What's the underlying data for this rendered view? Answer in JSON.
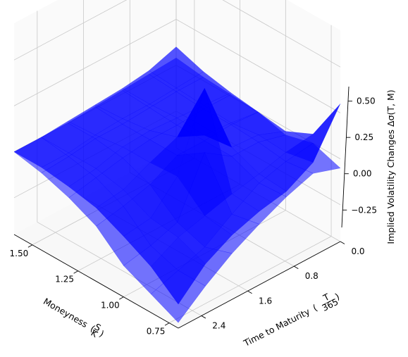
{
  "chart_data": {
    "type": "surface3d",
    "title": "",
    "xlabel": "Moneyness",
    "xlabel_frac_num": "S",
    "xlabel_frac_den": "K",
    "ylabel": "Time to Maturity",
    "ylabel_frac_num": "T",
    "ylabel_frac_den": "365",
    "zlabel": "Implied Volatility Changes Δσ(T, M)",
    "x_ticks": [
      "0.75",
      "1.00",
      "1.25",
      "1.50"
    ],
    "x_tick_values": [
      0.75,
      1.0,
      1.25,
      1.5
    ],
    "y_ticks": [
      "0.0",
      "0.8",
      "1.6",
      "2.4"
    ],
    "y_tick_values": [
      0.0,
      0.8,
      1.6,
      2.4
    ],
    "z_ticks": [
      "−0.25",
      "0.00",
      "0.25",
      "0.50"
    ],
    "z_tick_values": [
      -0.25,
      0.0,
      0.25,
      0.5
    ],
    "xlim": [
      0.7,
      1.6
    ],
    "ylim": [
      0.0,
      2.8
    ],
    "zlim": [
      -0.45,
      0.7
    ],
    "grid": true,
    "surface_color": "#0000ff",
    "moneyness_grid": [
      0.7,
      0.85,
      1.0,
      1.15,
      1.3,
      1.45,
      1.6
    ],
    "maturity_grid": [
      0.0,
      0.47,
      0.93,
      1.4,
      1.87,
      2.33,
      2.8
    ],
    "surfaces": [
      {
        "values": [
          [
            0.3,
            0.05,
            -0.02,
            0.0,
            0.02,
            0.05,
            0.1
          ],
          [
            0.06,
            0.03,
            0.04,
            0.02,
            0.03,
            0.04,
            0.05
          ],
          [
            -0.02,
            -0.01,
            0.05,
            0.03,
            0.04,
            0.03,
            0.03
          ],
          [
            -0.05,
            -0.04,
            0.45,
            0.1,
            0.05,
            0.03,
            0.02
          ],
          [
            -0.1,
            -0.08,
            0.05,
            0.04,
            0.04,
            0.02,
            0.01
          ],
          [
            -0.18,
            -0.12,
            -0.1,
            -0.03,
            0.0,
            0.0,
            0.0
          ],
          [
            -0.32,
            -0.2,
            -0.12,
            -0.05,
            -0.02,
            0.0,
            0.0
          ]
        ]
      },
      {
        "values": [
          [
            -0.05,
            0.0,
            -0.04,
            0.0,
            0.01,
            0.02,
            0.04
          ],
          [
            0.0,
            -0.02,
            0.0,
            0.01,
            0.01,
            0.02,
            0.03
          ],
          [
            -0.05,
            -0.06,
            0.0,
            0.0,
            0.0,
            0.01,
            0.02
          ],
          [
            -0.12,
            -0.15,
            0.1,
            0.0,
            0.0,
            0.0,
            0.01
          ],
          [
            -0.2,
            -0.25,
            -0.2,
            -0.08,
            -0.02,
            0.0,
            0.0
          ],
          [
            -0.3,
            -0.3,
            -0.25,
            -0.12,
            -0.05,
            -0.02,
            0.0
          ],
          [
            -0.42,
            -0.35,
            -0.28,
            -0.15,
            -0.08,
            -0.03,
            0.0
          ]
        ]
      }
    ]
  }
}
